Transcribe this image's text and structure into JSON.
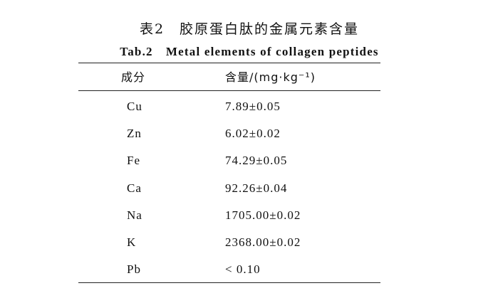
{
  "caption": {
    "cn": "表2　胶原蛋白肽的金属元素含量",
    "en": "Tab.2　Metal elements of collagen peptides"
  },
  "table": {
    "headers": [
      "成分",
      "含量/(mg·kg⁻¹)"
    ],
    "rows": [
      [
        "Cu",
        "7.89±0.05"
      ],
      [
        "Zn",
        "6.02±0.02"
      ],
      [
        "Fe",
        "74.29±0.05"
      ],
      [
        "Ca",
        "92.26±0.04"
      ],
      [
        "Na",
        "1705.00±0.02"
      ],
      [
        "K",
        "2368.00±0.02"
      ],
      [
        "Pb",
        "< 0.10"
      ]
    ]
  }
}
